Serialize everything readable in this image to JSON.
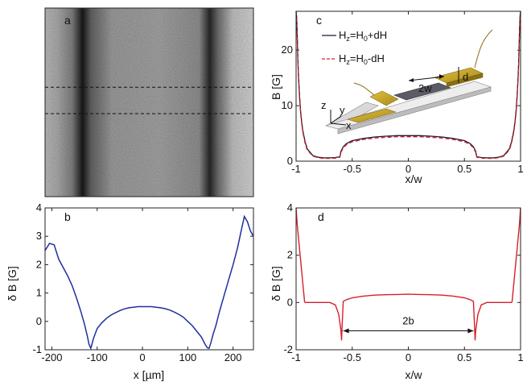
{
  "figure": {
    "panel_labels": {
      "a": "a",
      "b": "b",
      "c": "c",
      "d": "d"
    }
  },
  "chart_data": [
    {
      "panel": "a",
      "type": "image",
      "description_free": true,
      "dashed_rows_fraction": [
        0.42,
        0.56
      ]
    },
    {
      "panel": "b",
      "type": "line",
      "xlabel": "x [µm]",
      "ylabel": "δ B [G]",
      "xlim": [
        -215,
        245
      ],
      "ylim": [
        -1,
        4
      ],
      "xticks": [
        -200,
        -100,
        0,
        100,
        200
      ],
      "xtick_labels": [
        "-200",
        "-100",
        "0",
        "100",
        "200"
      ],
      "yticks": [
        -1,
        0,
        1,
        2,
        3,
        4
      ],
      "ytick_labels": [
        "-1",
        "0",
        "1",
        "2",
        "3",
        "4"
      ],
      "series": [
        {
          "color": "#1f2f9f",
          "x": [
            -215,
            -205,
            -195,
            -185,
            -175,
            -165,
            -155,
            -145,
            -135,
            -128,
            -122,
            -118,
            -114,
            -108,
            -100,
            -90,
            -80,
            -70,
            -60,
            -50,
            -40,
            -30,
            -20,
            -10,
            0,
            10,
            20,
            30,
            40,
            50,
            60,
            70,
            80,
            90,
            100,
            110,
            120,
            130,
            138,
            143,
            147,
            151,
            156,
            162,
            170,
            180,
            190,
            200,
            210,
            218,
            225,
            232,
            238,
            245
          ],
          "y": [
            2.5,
            2.75,
            2.7,
            2.2,
            1.9,
            1.6,
            1.25,
            0.8,
            0.3,
            -0.1,
            -0.5,
            -0.8,
            -0.95,
            -0.6,
            -0.25,
            -0.05,
            0.1,
            0.22,
            0.3,
            0.38,
            0.44,
            0.48,
            0.5,
            0.52,
            0.52,
            0.52,
            0.52,
            0.5,
            0.48,
            0.45,
            0.4,
            0.33,
            0.25,
            0.15,
            0.0,
            -0.15,
            -0.35,
            -0.55,
            -0.8,
            -0.93,
            -0.95,
            -0.75,
            -0.45,
            -0.15,
            0.35,
            0.9,
            1.45,
            2.0,
            2.6,
            3.2,
            3.7,
            3.5,
            3.2,
            3.0
          ]
        }
      ]
    },
    {
      "panel": "c",
      "type": "line",
      "xlabel": "x/w",
      "ylabel": "B [G]",
      "xlim": [
        -1,
        1
      ],
      "ylim": [
        0,
        27
      ],
      "xticks": [
        -1,
        -0.5,
        0,
        0.5,
        1
      ],
      "xtick_labels": [
        "-1",
        "-0.5",
        "0",
        "0.5",
        "1"
      ],
      "yticks": [
        0,
        10,
        20
      ],
      "ytick_labels": [
        "0",
        "10",
        "20"
      ],
      "series": [
        {
          "name": "H_z=H_0+dH",
          "legend_main": "H",
          "legend_sub1": "z",
          "legend_mid": "=H",
          "legend_sub2": "0",
          "legend_end": "+dH",
          "color": "#1a1a2e",
          "dash": "",
          "x": [
            -1.0,
            -0.995,
            -0.99,
            -0.985,
            -0.98,
            -0.97,
            -0.96,
            -0.95,
            -0.94,
            -0.92,
            -0.9,
            -0.85,
            -0.8,
            -0.75,
            -0.7,
            -0.65,
            -0.61,
            -0.6,
            -0.58,
            -0.55,
            -0.5,
            -0.4,
            -0.3,
            -0.2,
            -0.1,
            0.0,
            0.1,
            0.2,
            0.3,
            0.4,
            0.5,
            0.55,
            0.58,
            0.6,
            0.61,
            0.65,
            0.7,
            0.75,
            0.8,
            0.85,
            0.9,
            0.92,
            0.94,
            0.95,
            0.96,
            0.97,
            0.98,
            0.985,
            0.99,
            0.995,
            1.0
          ],
          "y": [
            27,
            26,
            23,
            19,
            16,
            12,
            9,
            7,
            5.5,
            3.5,
            2.2,
            1.0,
            0.7,
            0.6,
            0.6,
            0.65,
            0.8,
            1.8,
            2.6,
            3.2,
            3.7,
            4.1,
            4.35,
            4.5,
            4.6,
            4.6,
            4.6,
            4.5,
            4.35,
            4.1,
            3.7,
            3.2,
            2.6,
            1.8,
            0.8,
            0.65,
            0.6,
            0.6,
            0.7,
            1.0,
            2.2,
            3.5,
            5.5,
            7,
            9,
            12,
            16,
            19,
            23,
            26,
            27
          ]
        },
        {
          "name": "H_z=H_0-dH",
          "legend_main": "H",
          "legend_sub1": "z",
          "legend_mid": "=H",
          "legend_sub2": "0",
          "legend_end": "-dH",
          "color": "#d6202c",
          "dash": "5,3",
          "x": [
            -1.0,
            -0.995,
            -0.99,
            -0.985,
            -0.98,
            -0.97,
            -0.96,
            -0.95,
            -0.94,
            -0.92,
            -0.9,
            -0.85,
            -0.8,
            -0.75,
            -0.7,
            -0.65,
            -0.61,
            -0.6,
            -0.58,
            -0.55,
            -0.5,
            -0.4,
            -0.3,
            -0.2,
            -0.1,
            0.0,
            0.1,
            0.2,
            0.3,
            0.4,
            0.5,
            0.55,
            0.58,
            0.6,
            0.61,
            0.65,
            0.7,
            0.75,
            0.8,
            0.85,
            0.9,
            0.92,
            0.94,
            0.95,
            0.96,
            0.97,
            0.98,
            0.985,
            0.99,
            0.995,
            1.0
          ],
          "y": [
            27,
            25.5,
            22.5,
            18.5,
            15.5,
            11.5,
            8.6,
            6.7,
            5.2,
            3.2,
            2.0,
            0.9,
            0.6,
            0.5,
            0.5,
            0.55,
            0.7,
            1.6,
            2.4,
            3.0,
            3.5,
            3.9,
            4.15,
            4.3,
            4.4,
            4.4,
            4.4,
            4.3,
            4.15,
            3.9,
            3.5,
            3.0,
            2.4,
            1.6,
            0.7,
            0.55,
            0.5,
            0.5,
            0.6,
            0.9,
            2.0,
            3.2,
            5.2,
            6.7,
            8.6,
            11.5,
            15.5,
            18.5,
            22.5,
            25.5,
            27
          ]
        }
      ],
      "inset_labels": {
        "width": "2w",
        "thickness": "d",
        "axis_z": "z",
        "axis_y": "y",
        "axis_x": "x"
      }
    },
    {
      "panel": "d",
      "type": "line",
      "xlabel": "x/w",
      "ylabel": "δ B [G]",
      "xlim": [
        -1,
        1
      ],
      "ylim": [
        -2,
        4
      ],
      "xticks": [
        -1,
        -0.5,
        0,
        0.5,
        1
      ],
      "xtick_labels": [
        "-1",
        "-0.5",
        "0",
        "0.5",
        "1"
      ],
      "yticks": [
        -2,
        0,
        2,
        4
      ],
      "ytick_labels": [
        "-2",
        "0",
        "2",
        "4"
      ],
      "annotation": "2b",
      "annotation_span": [
        -0.58,
        0.58
      ],
      "annotation_y": -1.2,
      "series": [
        {
          "color": "#d6202c",
          "x": [
            -1.0,
            -0.99,
            -0.98,
            -0.97,
            -0.96,
            -0.95,
            -0.94,
            -0.93,
            -0.925,
            -0.92,
            -0.9,
            -0.8,
            -0.7,
            -0.65,
            -0.62,
            -0.6,
            -0.595,
            -0.59,
            -0.58,
            -0.55,
            -0.5,
            -0.4,
            -0.3,
            -0.2,
            -0.1,
            0.0,
            0.1,
            0.2,
            0.3,
            0.4,
            0.5,
            0.55,
            0.58,
            0.59,
            0.595,
            0.6,
            0.62,
            0.65,
            0.7,
            0.8,
            0.9,
            0.92,
            0.925,
            0.93,
            0.94,
            0.95,
            0.96,
            0.97,
            0.98,
            0.99,
            1.0
          ],
          "y": [
            4.0,
            3.3,
            2.8,
            2.3,
            1.8,
            1.3,
            0.8,
            0.3,
            0.05,
            0.0,
            0.0,
            0.0,
            0.0,
            -0.1,
            -0.5,
            -1.2,
            -1.6,
            -1.0,
            0.05,
            0.12,
            0.2,
            0.27,
            0.31,
            0.33,
            0.34,
            0.35,
            0.34,
            0.33,
            0.31,
            0.27,
            0.2,
            0.12,
            0.05,
            -1.0,
            -1.6,
            -1.2,
            -0.5,
            -0.1,
            0.0,
            0.0,
            0.0,
            0.0,
            0.05,
            0.3,
            0.8,
            1.3,
            1.8,
            2.3,
            2.8,
            3.3,
            4.0
          ]
        }
      ]
    }
  ]
}
